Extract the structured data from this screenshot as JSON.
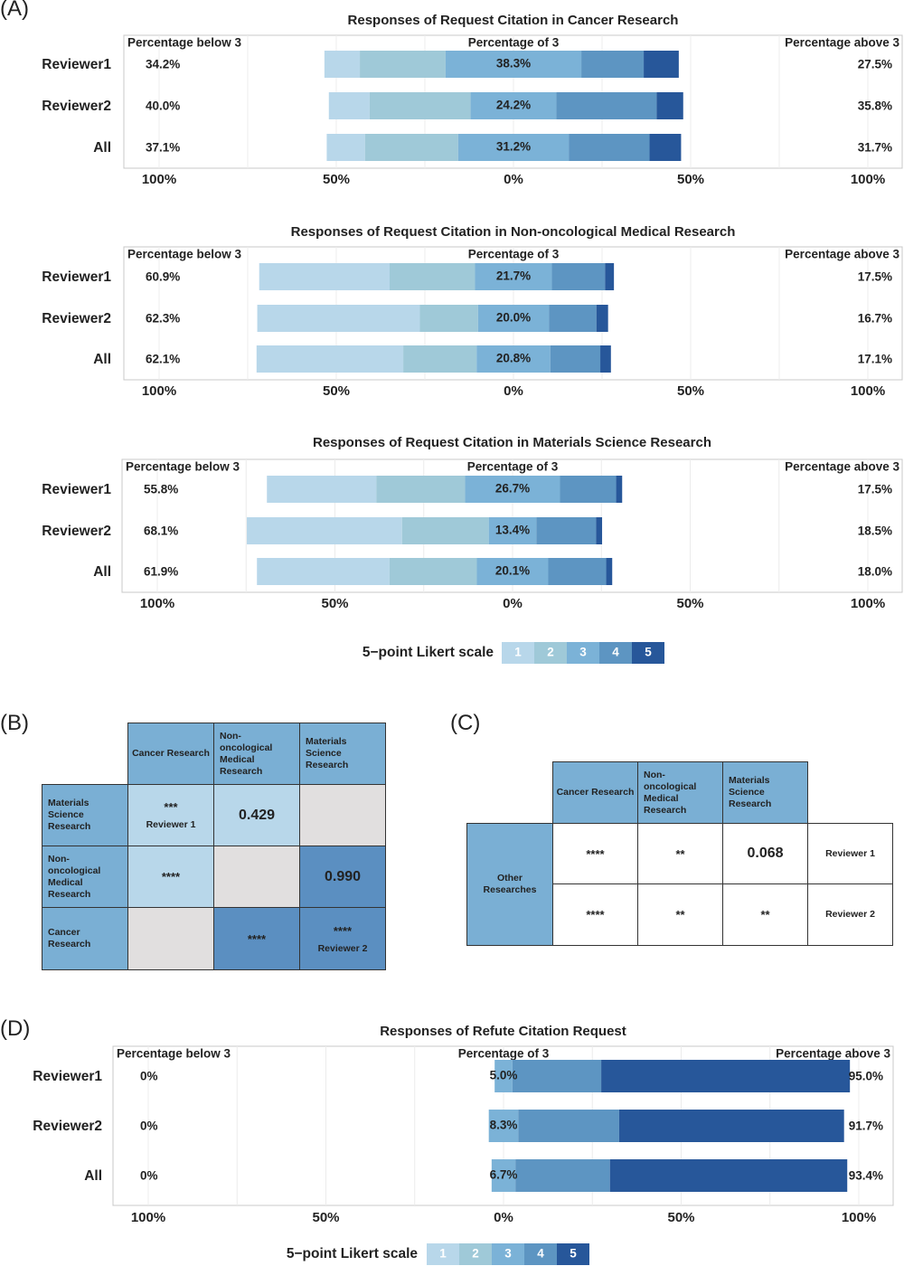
{
  "panels": {
    "A": "(A)",
    "B": "(B)",
    "C": "(C)",
    "D": "(D)"
  },
  "colors": {
    "l1": "#b8d7ea",
    "l2": "#9fc9d8",
    "l3": "#7bb2d7",
    "l4": "#5d95c2",
    "l5": "#27579a",
    "matrix_light": "#b8d7ea",
    "matrix_mid": "#7aafd4",
    "matrix_dark": "#5b8fc1",
    "matrix_grey": "#e1dfdf",
    "frame": "#c8c8c8"
  },
  "axis_ticks": [
    "100%",
    "50%",
    "0%",
    "50%",
    "100%"
  ],
  "corner_labels": {
    "below": "Percentage below 3",
    "middle": "Percentage of 3",
    "above": "Percentage above 3"
  },
  "legend": {
    "title": "5−point Likert scale",
    "levels": [
      "1",
      "2",
      "3",
      "4",
      "5"
    ]
  },
  "chart_data": [
    {
      "type": "bar",
      "title": "Responses of Request Citation in Cancer Research",
      "categories": [
        "Reviewer1",
        "Reviewer2",
        "All"
      ],
      "xlim": [
        -100,
        100
      ],
      "series": [
        {
          "name": "1",
          "values": [
            10,
            11.5,
            10.8
          ]
        },
        {
          "name": "2",
          "values": [
            24.2,
            28.5,
            26.3
          ]
        },
        {
          "name": "3",
          "values": [
            38.3,
            24.2,
            31.2
          ]
        },
        {
          "name": "4",
          "values": [
            17.6,
            28.3,
            22.8
          ]
        },
        {
          "name": "5",
          "values": [
            9.9,
            7.5,
            8.9
          ]
        }
      ],
      "below": [
        "34.2%",
        "40.0%",
        "37.1%"
      ],
      "mid": [
        "38.3%",
        "24.2%",
        "31.2%"
      ],
      "above": [
        "27.5%",
        "35.8%",
        "31.7%"
      ]
    },
    {
      "type": "bar",
      "title": "Responses of Request Citation in Non-oncological Medical Research",
      "categories": [
        "Reviewer1",
        "Reviewer2",
        "All"
      ],
      "xlim": [
        -100,
        100
      ],
      "series": [
        {
          "name": "1",
          "values": [
            36.8,
            45.9,
            41.4
          ]
        },
        {
          "name": "2",
          "values": [
            24.1,
            16.4,
            20.7
          ]
        },
        {
          "name": "3",
          "values": [
            21.7,
            20.0,
            20.8
          ]
        },
        {
          "name": "4",
          "values": [
            15.0,
            13.4,
            14.1
          ]
        },
        {
          "name": "5",
          "values": [
            2.5,
            3.3,
            3.0
          ]
        }
      ],
      "below": [
        "60.9%",
        "62.3%",
        "62.1%"
      ],
      "mid": [
        "21.7%",
        "20.0%",
        "20.8%"
      ],
      "above": [
        "17.5%",
        "16.7%",
        "17.1%"
      ]
    },
    {
      "type": "bar",
      "title": "Responses of Request Citation in Materials Science Research",
      "categories": [
        "Reviewer1",
        "Reviewer2",
        "All"
      ],
      "xlim": [
        -100,
        100
      ],
      "series": [
        {
          "name": "1",
          "values": [
            30.8,
            43.7,
            37.3
          ]
        },
        {
          "name": "2",
          "values": [
            25.0,
            24.4,
            24.6
          ]
        },
        {
          "name": "3",
          "values": [
            26.7,
            13.4,
            20.1
          ]
        },
        {
          "name": "4",
          "values": [
            15.8,
            16.8,
            16.3
          ]
        },
        {
          "name": "5",
          "values": [
            1.7,
            1.7,
            1.7
          ]
        }
      ],
      "below": [
        "55.8%",
        "68.1%",
        "61.9%"
      ],
      "mid": [
        "26.7%",
        "13.4%",
        "20.1%"
      ],
      "above": [
        "17.5%",
        "18.5%",
        "18.0%"
      ]
    },
    {
      "type": "bar",
      "title": "Responses of Refute Citation Request",
      "categories": [
        "Reviewer1",
        "Reviewer2",
        "All"
      ],
      "xlim": [
        -100,
        100
      ],
      "series": [
        {
          "name": "1",
          "values": [
            0,
            0,
            0
          ]
        },
        {
          "name": "2",
          "values": [
            0,
            0,
            0
          ]
        },
        {
          "name": "3",
          "values": [
            5.0,
            8.3,
            6.7
          ]
        },
        {
          "name": "4",
          "values": [
            25.0,
            28.4,
            26.6
          ]
        },
        {
          "name": "5",
          "values": [
            70.0,
            63.3,
            66.8
          ]
        }
      ],
      "below": [
        "0%",
        "0%",
        "0%"
      ],
      "mid": [
        "5.0%",
        "8.3%",
        "6.7%"
      ],
      "above": [
        "95.0%",
        "91.7%",
        "93.4%"
      ]
    },
    {
      "type": "table",
      "columns": [
        "Cancer Research",
        "Non-oncological Medical Research",
        "Materials Science Research"
      ],
      "rows": [
        "Materials Science Research",
        "Non-oncological Medical Research",
        "Cancer Research"
      ],
      "cells": [
        {
          "main": "***",
          "sub": "Reviewer 1"
        },
        {
          "main": "0.429",
          "sub": ""
        },
        {
          "main": "",
          "sub": ""
        },
        {
          "main": "****",
          "sub": ""
        },
        {
          "main": "",
          "sub": ""
        },
        {
          "main": "0.990",
          "sub": ""
        },
        {
          "main": "",
          "sub": ""
        },
        {
          "main": "****",
          "sub": ""
        },
        {
          "main": "****",
          "sub": "Reviewer 2"
        }
      ]
    },
    {
      "type": "table",
      "columns": [
        "Cancer Research",
        "Non-oncological Medical Research",
        "Materials Science Research"
      ],
      "row_label": "Other Researches",
      "reviewer_labels": [
        "Reviewer 1",
        "Reviewer 2"
      ],
      "cells": [
        [
          "****",
          "**",
          "0.068"
        ],
        [
          "****",
          "**",
          "**"
        ]
      ]
    }
  ]
}
